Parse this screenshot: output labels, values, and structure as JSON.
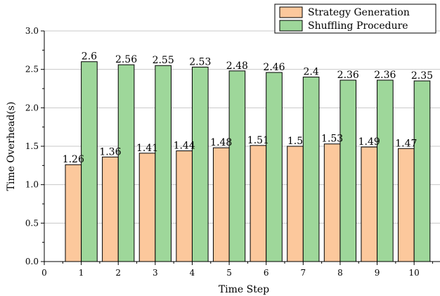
{
  "chart_data": {
    "type": "bar",
    "title": "",
    "xlabel": "Time Step",
    "ylabel": "Time Overhead(s)",
    "categories": [
      "1",
      "2",
      "3",
      "4",
      "5",
      "6",
      "7",
      "8",
      "9",
      "10"
    ],
    "x_ticks": [
      "0",
      "1",
      "2",
      "3",
      "4",
      "5",
      "6",
      "7",
      "8",
      "9",
      "10"
    ],
    "xlim": [
      0,
      10.7
    ],
    "ylim": [
      0,
      3.0
    ],
    "y_ticks": [
      "0.0",
      "0.5",
      "1.0",
      "1.5",
      "2.0",
      "2.5",
      "3.0"
    ],
    "grid": "horizontal",
    "legend_position": "top-right",
    "series": [
      {
        "name": "Strategy Generation",
        "color": "#fcc89c",
        "values": [
          1.26,
          1.36,
          1.41,
          1.44,
          1.48,
          1.51,
          1.5,
          1.53,
          1.49,
          1.47
        ],
        "labels": [
          "1.26",
          "1.36",
          "1.41",
          "1.44",
          "1.48",
          "1.51",
          "1.5",
          "1.53",
          "1.49",
          "1.47"
        ]
      },
      {
        "name": "Shuffling Procedure",
        "color": "#9ed79a",
        "values": [
          2.6,
          2.56,
          2.55,
          2.53,
          2.48,
          2.46,
          2.4,
          2.36,
          2.36,
          2.35
        ],
        "labels": [
          "2.6",
          "2.56",
          "2.55",
          "2.53",
          "2.48",
          "2.46",
          "2.4",
          "2.36",
          "2.36",
          "2.35"
        ]
      }
    ]
  }
}
